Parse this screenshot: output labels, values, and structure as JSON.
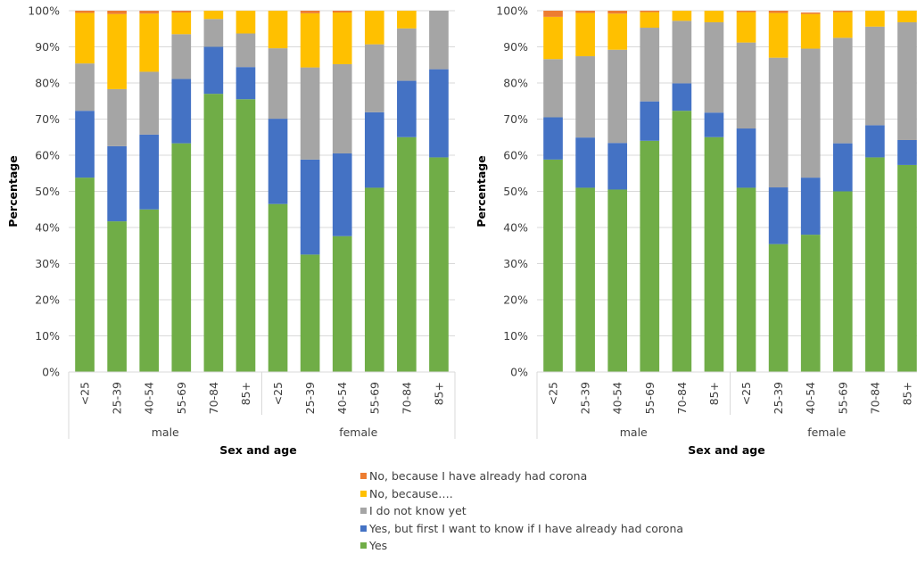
{
  "chart_data": [
    {
      "type": "bar",
      "stacked": true,
      "percent": true,
      "xlabel": "Sex and age",
      "ylabel": "Percentage",
      "ylim": [
        0,
        100
      ],
      "ytick_labels": [
        "0%",
        "10%",
        "20%",
        "30%",
        "40%",
        "50%",
        "60%",
        "70%",
        "80%",
        "90%",
        "100%"
      ],
      "groups": [
        {
          "name": "male",
          "categories": [
            "<25",
            "25-39",
            "40-54",
            "55-69",
            "70-84",
            "85+"
          ]
        },
        {
          "name": "female",
          "categories": [
            "<25",
            "25-39",
            "40-54",
            "55-69",
            "70-84",
            "85+"
          ]
        }
      ],
      "series": [
        {
          "name": "Yes",
          "values": [
            53.8,
            41.7,
            45.0,
            63.3,
            77.0,
            75.5,
            46.5,
            32.5,
            37.6,
            51.0,
            65.0,
            59.4
          ]
        },
        {
          "name": "Yes, but first I want to know if I have already had corona",
          "values": [
            18.5,
            20.8,
            20.7,
            17.8,
            13.0,
            8.9,
            23.6,
            26.3,
            22.9,
            20.9,
            15.6,
            24.4
          ]
        },
        {
          "name": "I do not know yet",
          "values": [
            13.1,
            15.8,
            17.4,
            12.4,
            7.7,
            9.3,
            19.5,
            25.5,
            24.7,
            18.8,
            14.5,
            16.2
          ]
        },
        {
          "name": "No, because….",
          "values": [
            14.0,
            20.8,
            16.1,
            6.0,
            2.3,
            6.3,
            10.4,
            15.0,
            14.3,
            9.3,
            4.9,
            0.0
          ]
        },
        {
          "name": "No, because I have already had corona",
          "values": [
            0.6,
            0.9,
            0.8,
            0.5,
            0.0,
            0.0,
            0.0,
            0.7,
            0.5,
            0.0,
            0.0,
            0.0
          ]
        }
      ]
    },
    {
      "type": "bar",
      "stacked": true,
      "percent": true,
      "xlabel": "Sex and age",
      "ylabel": "Percentage",
      "ylim": [
        0,
        100
      ],
      "ytick_labels": [
        "0%",
        "10%",
        "20%",
        "30%",
        "40%",
        "50%",
        "60%",
        "70%",
        "80%",
        "90%",
        "100%"
      ],
      "groups": [
        {
          "name": "male",
          "categories": [
            "<25",
            "25-39",
            "40-54",
            "55-69",
            "70-84",
            "85+"
          ]
        },
        {
          "name": "female",
          "categories": [
            "<25",
            "25-39",
            "40-54",
            "55-69",
            "70-84",
            "85+"
          ]
        }
      ],
      "series": [
        {
          "name": "Yes",
          "values": [
            58.8,
            51.0,
            50.5,
            64.0,
            72.3,
            65.0,
            51.0,
            35.4,
            38.0,
            50.0,
            59.4,
            57.3
          ]
        },
        {
          "name": "Yes, but first I want to know if I have already had corona",
          "values": [
            11.7,
            13.9,
            12.9,
            10.9,
            7.6,
            6.8,
            16.4,
            15.7,
            15.8,
            13.3,
            8.9,
            6.9
          ]
        },
        {
          "name": "I do not know yet",
          "values": [
            16.1,
            22.5,
            25.8,
            20.4,
            17.3,
            25.0,
            23.8,
            35.9,
            35.7,
            29.2,
            27.3,
            32.6
          ]
        },
        {
          "name": "No, because….",
          "values": [
            11.7,
            12.0,
            10.0,
            4.3,
            2.8,
            3.2,
            8.4,
            12.4,
            9.6,
            7.1,
            4.4,
            3.2
          ]
        },
        {
          "name": "No, because I have already had corona",
          "values": [
            1.7,
            0.6,
            0.8,
            0.4,
            0.0,
            0.0,
            0.4,
            0.6,
            0.4,
            0.4,
            0.0,
            0.0
          ]
        }
      ]
    }
  ],
  "legend": [
    {
      "label": "No, because I have already had corona",
      "color": "#ed7d31"
    },
    {
      "label": "No, because….",
      "color": "#ffc000"
    },
    {
      "label": "I do not know yet",
      "color": "#a5a5a5"
    },
    {
      "label": "Yes, but first I want to know if I have already had corona",
      "color": "#4472c4"
    },
    {
      "label": "Yes",
      "color": "#70ad47"
    }
  ],
  "series_colors": {
    "Yes": "#70ad47",
    "Yes, but first I want to know if I have already had corona": "#4472c4",
    "I do not know yet": "#a5a5a5",
    "No, because….": "#ffc000",
    "No, because I have already had corona": "#ed7d31"
  }
}
